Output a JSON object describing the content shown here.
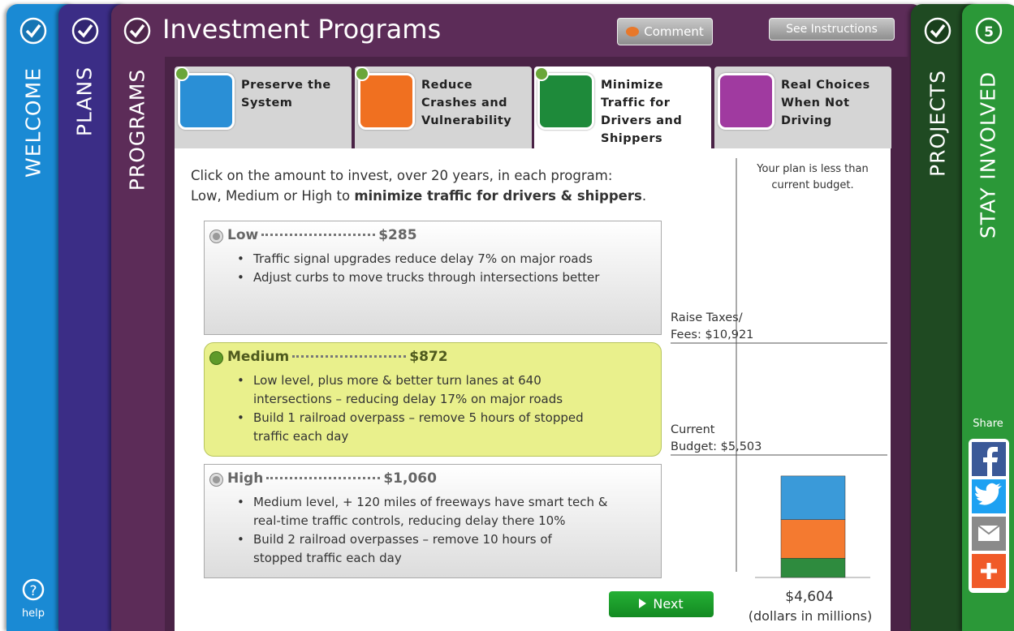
{
  "nav_left": [
    {
      "label": "WELCOME"
    },
    {
      "label": "PLANS"
    },
    {
      "label": "PROGRAMS"
    }
  ],
  "help": {
    "icon": "?",
    "label": "help"
  },
  "header": {
    "title": "Investment Programs",
    "comment": "Comment",
    "instructions": "See Instructions"
  },
  "nav_right": [
    {
      "label": "PROJECTS"
    },
    {
      "label": "STAY INVOLVED",
      "badge": 5
    }
  ],
  "share": "Share",
  "program_tabs": [
    {
      "label": [
        "Preserve the",
        "System"
      ],
      "color": "#2a8fd6"
    },
    {
      "label": [
        "Reduce",
        "Crashes and",
        "Vulnerability"
      ],
      "color": "#f07020"
    },
    {
      "label": [
        "Minimize",
        "Traffic for",
        "Drivers and",
        "Shippers"
      ],
      "color": "#1e8a3a",
      "active": true
    },
    {
      "label": [
        "Real Choices",
        "When Not",
        "Driving"
      ],
      "color": "#a03aa0"
    }
  ],
  "instructions": {
    "line1": "Click on the amount to invest, over 20 years, in each program:",
    "line2": "Low, Medium or High to ",
    "line2_bold": "minimize traffic for drivers & shippers",
    "line2_end": "."
  },
  "options": [
    {
      "name": "Low",
      "price": "$285",
      "bullets": [
        [
          "Traffic signal upgrades reduce delay 7% on major roads"
        ],
        [
          "Adjust curbs to move trucks through intersections better"
        ]
      ]
    },
    {
      "name": "Medium",
      "price": "$872",
      "selected": true,
      "bullets": [
        [
          "Low level, plus more & better turn lanes at 640",
          "intersections – reducing delay 17% on major roads"
        ],
        [
          "Build 1 railroad overpass – remove 5 hours of stopped",
          "traffic each day"
        ]
      ]
    },
    {
      "name": "High",
      "price": "$1,060",
      "bullets": [
        [
          "Medium level, + 120 miles of freeways have smart tech &",
          "real-time traffic controls, reducing delay there 10%"
        ],
        [
          "Build 2 railroad overpasses – remove 10 hours of",
          "stopped traffic each day"
        ]
      ]
    }
  ],
  "budget": {
    "note": [
      "Your plan is less than",
      "current budget."
    ],
    "raise_taxes": [
      "Raise Taxes/",
      "Fees: $10,921"
    ],
    "current": [
      "Current",
      "Budget: $5,503"
    ],
    "segments": [
      {
        "color": "#2e8b3e",
        "value": 872
      },
      {
        "color": "#f47a30",
        "value": 1752
      },
      {
        "color": "#3a9ad9",
        "value": 1980
      }
    ],
    "total": "$4,604",
    "unit": "(dollars in millions)"
  },
  "next": "Next"
}
